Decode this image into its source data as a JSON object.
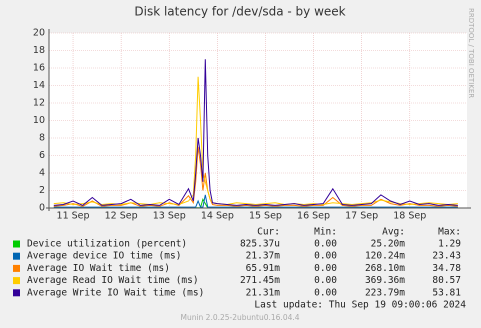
{
  "chart_data": {
    "type": "line",
    "title": "Disk latency for /dev/sda - by week",
    "side_text": "RRDTOOL / TOBI OETIKER",
    "x": [
      10.6,
      10.8,
      11.0,
      11.2,
      11.4,
      11.6,
      11.8,
      12.0,
      12.2,
      12.4,
      12.6,
      12.8,
      13.0,
      13.2,
      13.4,
      13.5,
      13.55,
      13.6,
      13.65,
      13.7,
      13.75,
      13.8,
      13.85,
      13.9,
      14.0,
      14.2,
      14.4,
      14.6,
      14.8,
      15.0,
      15.2,
      15.4,
      15.6,
      15.8,
      16.0,
      16.2,
      16.4,
      16.6,
      16.8,
      17.0,
      17.2,
      17.4,
      17.6,
      17.8,
      18.0,
      18.2,
      18.4,
      18.6,
      18.8,
      19.0
    ],
    "xlim": [
      10.5,
      19.19
    ],
    "xticks": [
      {
        "value": 11,
        "label": "11 Sep"
      },
      {
        "value": 12,
        "label": "12 Sep"
      },
      {
        "value": 13,
        "label": "13 Sep"
      },
      {
        "value": 14,
        "label": "14 Sep"
      },
      {
        "value": 15,
        "label": "15 Sep"
      },
      {
        "value": 16,
        "label": "16 Sep"
      },
      {
        "value": 17,
        "label": "17 Sep"
      },
      {
        "value": 18,
        "label": "18 Sep"
      }
    ],
    "ylim": [
      0,
      20
    ],
    "yticks": [
      0,
      2,
      4,
      6,
      8,
      10,
      12,
      14,
      16,
      18,
      20
    ],
    "grid": true,
    "legend_headers": [
      "Cur:",
      "Min:",
      "Avg:",
      "Max:"
    ],
    "series": [
      {
        "name": "Device utilization (percent)",
        "color": "#00cc00",
        "cur": "825.37u",
        "min": "0.00",
        "avg": "25.20m",
        "max": "1.29",
        "values": [
          0.02,
          0.02,
          0.02,
          0.02,
          0.02,
          0.02,
          0.02,
          0.02,
          0.02,
          0.02,
          0.02,
          0.02,
          0.02,
          0.02,
          0.02,
          0.02,
          0.02,
          0.02,
          0.02,
          1.0,
          0.5,
          0.02,
          0.02,
          0.02,
          0.02,
          0.02,
          0.02,
          0.02,
          0.02,
          0.02,
          0.02,
          0.02,
          0.02,
          0.02,
          0.02,
          0.02,
          0.02,
          0.02,
          0.02,
          0.02,
          0.02,
          0.02,
          0.02,
          0.02,
          0.02,
          0.02,
          0.02,
          0.02,
          0.02,
          0.02
        ]
      },
      {
        "name": "Average device IO time (ms)",
        "color": "#0066b3",
        "cur": "21.37m",
        "min": "0.00",
        "avg": "120.24m",
        "max": "23.43",
        "values": [
          0.1,
          0.1,
          0.1,
          0.1,
          0.1,
          0.1,
          0.1,
          0.1,
          0.1,
          0.1,
          0.1,
          0.1,
          0.1,
          0.1,
          0.1,
          0.1,
          0.1,
          0.8,
          0.1,
          0.1,
          1.5,
          0.1,
          0.1,
          0.1,
          0.1,
          0.1,
          0.1,
          0.1,
          0.1,
          0.1,
          0.1,
          0.1,
          0.1,
          0.1,
          0.1,
          0.1,
          0.1,
          0.1,
          0.1,
          0.1,
          0.1,
          0.1,
          0.1,
          0.1,
          0.1,
          0.1,
          0.1,
          0.1,
          0.1,
          0.1
        ]
      },
      {
        "name": "Average IO Wait time (ms)",
        "color": "#ff8000",
        "cur": "65.91m",
        "min": "0.00",
        "avg": "268.10m",
        "max": "34.78",
        "values": [
          0.2,
          0.3,
          0.5,
          0.2,
          0.8,
          0.2,
          0.3,
          0.3,
          0.6,
          0.2,
          0.3,
          0.2,
          0.6,
          0.3,
          1.4,
          0.6,
          3,
          7,
          5,
          2,
          4,
          2,
          1,
          0.4,
          0.3,
          0.3,
          0.2,
          0.3,
          0.2,
          0.3,
          0.2,
          0.3,
          0.3,
          0.2,
          0.3,
          0.3,
          1.2,
          0.3,
          0.2,
          0.3,
          0.3,
          1.0,
          0.5,
          0.3,
          0.5,
          0.3,
          0.3,
          0.2,
          0.3,
          0.2
        ]
      },
      {
        "name": "Average Read IO Wait time (ms)",
        "color": "#ffcc00",
        "cur": "271.45m",
        "min": "0.00",
        "avg": "369.36m",
        "max": "80.57",
        "values": [
          0.5,
          0.6,
          0.4,
          0.5,
          0.7,
          0.4,
          0.5,
          0.4,
          0.6,
          0.5,
          0.4,
          0.6,
          0.5,
          0.4,
          0.8,
          1.5,
          6,
          15,
          10,
          4,
          3,
          2,
          1,
          0.6,
          0.5,
          0.4,
          0.6,
          0.5,
          0.4,
          0.5,
          0.6,
          0.4,
          0.5,
          0.4,
          0.5,
          0.4,
          0.6,
          0.5,
          0.4,
          0.5,
          0.6,
          0.9,
          0.7,
          0.5,
          0.4,
          0.5,
          0.6,
          0.5,
          0.4,
          0.5
        ]
      },
      {
        "name": "Average Write IO Wait time (ms)",
        "color": "#330099",
        "cur": "21.31m",
        "min": "0.00",
        "avg": "223.79m",
        "max": "53.81",
        "values": [
          0.3,
          0.4,
          0.8,
          0.3,
          1.2,
          0.3,
          0.4,
          0.5,
          1.0,
          0.3,
          0.4,
          0.3,
          1.0,
          0.4,
          2.2,
          0.8,
          4,
          8,
          6,
          3,
          17,
          6,
          2,
          0.6,
          0.5,
          0.4,
          0.3,
          0.4,
          0.3,
          0.4,
          0.3,
          0.4,
          0.5,
          0.3,
          0.4,
          0.5,
          2.2,
          0.4,
          0.3,
          0.4,
          0.5,
          1.5,
          0.8,
          0.4,
          0.8,
          0.4,
          0.5,
          0.3,
          0.4,
          0.3
        ]
      }
    ],
    "last_update": "Last update:  Thu Sep 19 09:00:06 2024",
    "footer": "Munin 2.0.25-2ubuntu0.16.04.4"
  }
}
